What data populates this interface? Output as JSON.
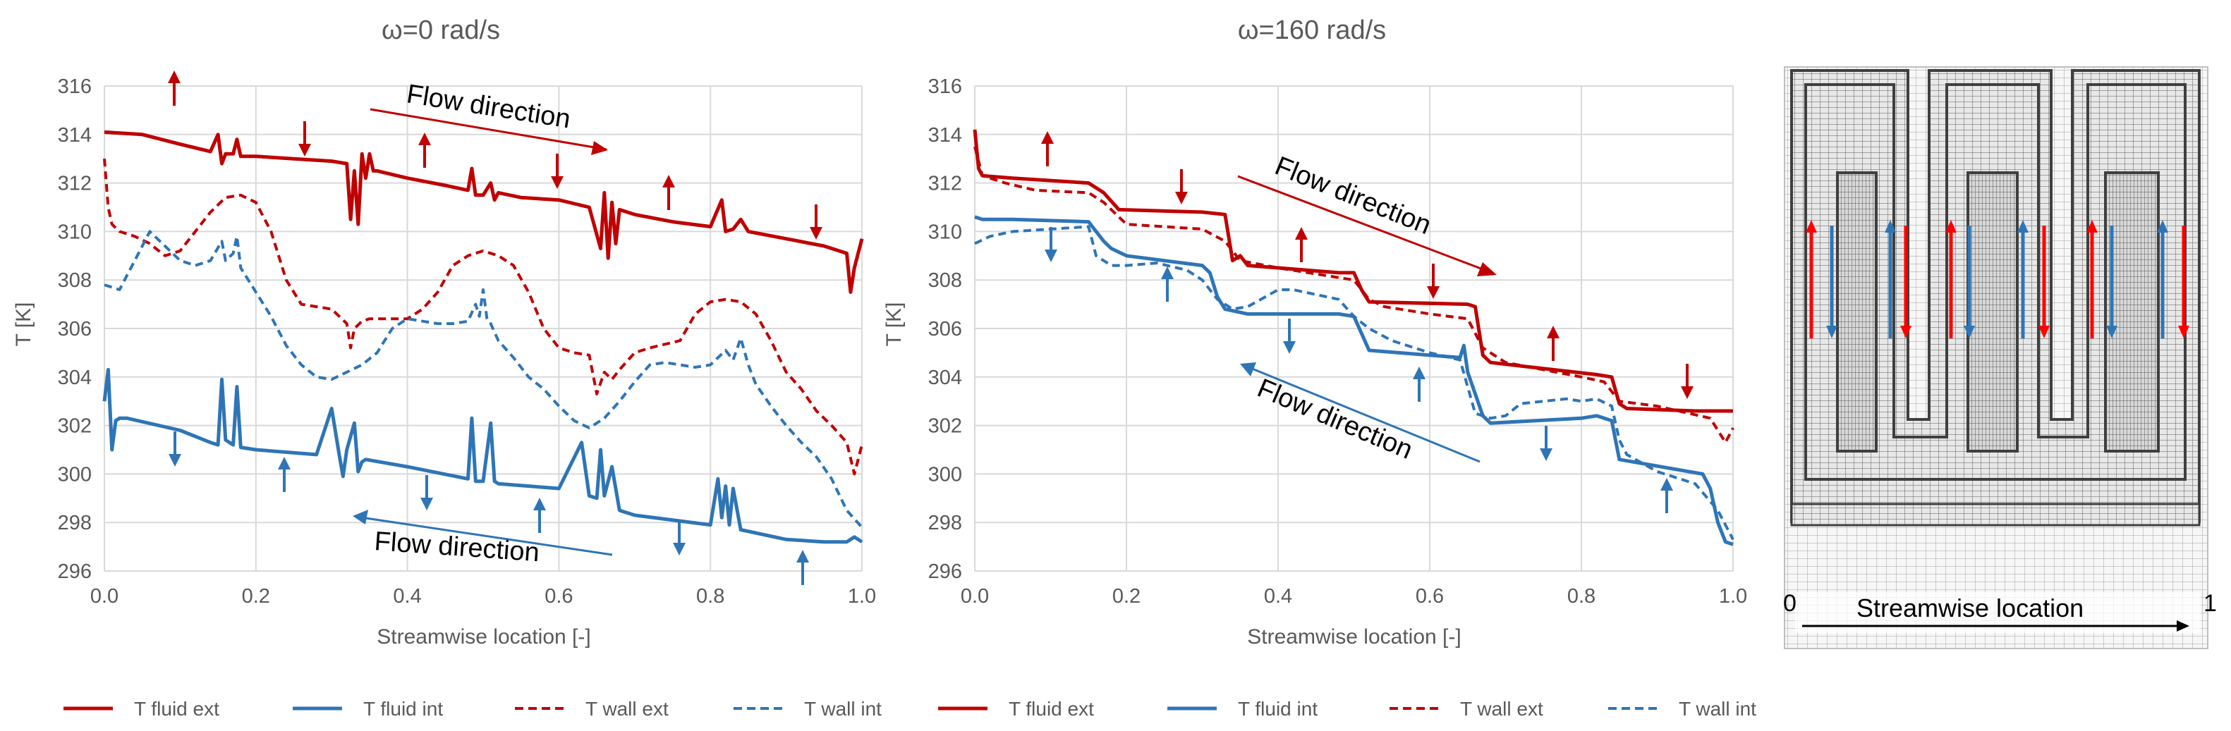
{
  "colors": {
    "ext": "#c00000",
    "int": "#2e75b6",
    "grid": "#d9d9d9",
    "axis_text": "#595959",
    "mesh_dark": "#3f3f3f",
    "mesh_light": "#7f7f7f",
    "red_arrow": "#ff0000",
    "blue_arrow": "#2e75b6"
  },
  "chart_data": [
    {
      "type": "line",
      "title": "ω=0 rad/s",
      "xlabel": "Streamwise location [-]",
      "ylabel": "T [K]",
      "xlim": [
        0,
        1
      ],
      "ylim": [
        296,
        316
      ],
      "xticks": [
        "0.0",
        "0.2",
        "0.4",
        "0.6",
        "0.8",
        "1.0"
      ],
      "yticks": [
        "296",
        "298",
        "300",
        "302",
        "304",
        "306",
        "308",
        "310",
        "312",
        "314",
        "316"
      ],
      "grid": true,
      "legend_position": "bottom",
      "series": [
        {
          "name": "T fluid ext",
          "style": "solid",
          "color": "ext",
          "x": [
            0,
            0.05,
            0.1,
            0.14,
            0.15,
            0.155,
            0.16,
            0.17,
            0.175,
            0.18,
            0.2,
            0.25,
            0.3,
            0.32,
            0.325,
            0.33,
            0.335,
            0.34,
            0.345,
            0.35,
            0.355,
            0.36,
            0.4,
            0.45,
            0.48,
            0.485,
            0.49,
            0.5,
            0.51,
            0.515,
            0.52,
            0.55,
            0.6,
            0.64,
            0.655,
            0.66,
            0.665,
            0.67,
            0.675,
            0.68,
            0.7,
            0.75,
            0.8,
            0.815,
            0.82,
            0.83,
            0.84,
            0.85,
            0.9,
            0.95,
            0.98,
            0.985,
            0.99,
            1.0
          ],
          "y": [
            314.1,
            314.0,
            313.6,
            313.3,
            314.0,
            312.8,
            313.2,
            313.2,
            313.8,
            313.1,
            313.1,
            313.0,
            312.9,
            312.8,
            310.5,
            312.5,
            310.3,
            313.2,
            312.2,
            313.2,
            312.5,
            312.5,
            312.2,
            311.9,
            311.7,
            312.6,
            311.5,
            311.5,
            312.0,
            311.3,
            311.6,
            311.4,
            311.3,
            311.0,
            309.3,
            311.6,
            308.9,
            311.2,
            309.5,
            310.9,
            310.7,
            310.4,
            310.2,
            311.3,
            310.0,
            310.1,
            310.5,
            310.0,
            309.7,
            309.4,
            309.1,
            307.5,
            308.5,
            309.7
          ]
        },
        {
          "name": "T fluid int",
          "style": "solid",
          "color": "int",
          "x": [
            0,
            0.005,
            0.01,
            0.015,
            0.02,
            0.03,
            0.1,
            0.14,
            0.15,
            0.155,
            0.16,
            0.17,
            0.175,
            0.18,
            0.2,
            0.28,
            0.3,
            0.31,
            0.315,
            0.32,
            0.33,
            0.335,
            0.34,
            0.345,
            0.4,
            0.48,
            0.485,
            0.49,
            0.5,
            0.51,
            0.515,
            0.52,
            0.6,
            0.63,
            0.64,
            0.65,
            0.655,
            0.66,
            0.67,
            0.68,
            0.7,
            0.8,
            0.81,
            0.815,
            0.82,
            0.825,
            0.83,
            0.84,
            0.9,
            0.95,
            0.98,
            0.99,
            1.0
          ],
          "y": [
            303.0,
            304.3,
            301.0,
            302.2,
            302.3,
            302.3,
            301.8,
            301.3,
            301.2,
            303.9,
            301.4,
            301.2,
            303.6,
            301.1,
            301.0,
            300.8,
            302.7,
            300.8,
            299.9,
            301.0,
            302.1,
            300.1,
            300.5,
            300.6,
            300.3,
            299.8,
            302.3,
            299.7,
            299.7,
            302.1,
            299.7,
            299.6,
            299.4,
            301.3,
            299.1,
            299.0,
            301.0,
            299.1,
            300.3,
            298.5,
            298.3,
            297.9,
            299.8,
            298.2,
            299.5,
            297.9,
            299.4,
            297.7,
            297.3,
            297.2,
            297.2,
            297.4,
            297.2
          ]
        },
        {
          "name": "T wall ext",
          "style": "dashed",
          "color": "ext",
          "x": [
            0,
            0.005,
            0.01,
            0.02,
            0.04,
            0.06,
            0.08,
            0.1,
            0.12,
            0.14,
            0.16,
            0.18,
            0.2,
            0.22,
            0.24,
            0.26,
            0.3,
            0.32,
            0.325,
            0.33,
            0.34,
            0.35,
            0.4,
            0.42,
            0.44,
            0.46,
            0.48,
            0.5,
            0.52,
            0.54,
            0.56,
            0.58,
            0.6,
            0.62,
            0.64,
            0.65,
            0.66,
            0.67,
            0.68,
            0.7,
            0.72,
            0.76,
            0.78,
            0.8,
            0.82,
            0.84,
            0.86,
            0.88,
            0.9,
            0.92,
            0.94,
            0.96,
            0.98,
            0.99,
            1.0
          ],
          "y": [
            313.0,
            311.0,
            310.3,
            310.0,
            309.8,
            309.5,
            309.0,
            309.2,
            310.0,
            310.8,
            311.4,
            311.5,
            311.2,
            310.0,
            308.0,
            307.0,
            306.8,
            306.2,
            305.2,
            306.0,
            306.3,
            306.4,
            306.4,
            306.8,
            307.5,
            308.6,
            309.0,
            309.2,
            309.0,
            308.6,
            307.5,
            306.0,
            305.2,
            305.0,
            304.9,
            303.3,
            304.2,
            303.9,
            304.3,
            305.0,
            305.2,
            305.5,
            306.6,
            307.1,
            307.2,
            307.1,
            306.6,
            305.5,
            304.2,
            303.5,
            302.6,
            302.0,
            301.3,
            300.0,
            301.2
          ]
        },
        {
          "name": "T wall int",
          "style": "dashed",
          "color": "int",
          "x": [
            0,
            0.02,
            0.04,
            0.06,
            0.08,
            0.1,
            0.12,
            0.14,
            0.155,
            0.16,
            0.17,
            0.175,
            0.18,
            0.2,
            0.22,
            0.24,
            0.26,
            0.28,
            0.3,
            0.32,
            0.34,
            0.36,
            0.38,
            0.4,
            0.42,
            0.44,
            0.46,
            0.48,
            0.49,
            0.495,
            0.5,
            0.505,
            0.51,
            0.52,
            0.54,
            0.56,
            0.58,
            0.6,
            0.62,
            0.64,
            0.66,
            0.68,
            0.7,
            0.72,
            0.74,
            0.76,
            0.78,
            0.8,
            0.82,
            0.83,
            0.84,
            0.85,
            0.86,
            0.88,
            0.9,
            0.92,
            0.94,
            0.96,
            0.98,
            1.0
          ],
          "y": [
            307.8,
            307.6,
            308.8,
            310.0,
            309.4,
            308.8,
            308.6,
            308.8,
            309.6,
            308.8,
            309.1,
            309.8,
            308.5,
            307.5,
            306.5,
            305.3,
            304.5,
            304.0,
            303.9,
            304.2,
            304.5,
            305.0,
            306.0,
            306.4,
            306.3,
            306.2,
            306.2,
            306.3,
            307.0,
            306.5,
            307.6,
            306.4,
            306.2,
            305.5,
            304.8,
            304.0,
            303.5,
            302.8,
            302.2,
            301.9,
            302.3,
            303.0,
            303.8,
            304.5,
            304.6,
            304.5,
            304.4,
            304.5,
            305.1,
            304.7,
            305.6,
            304.5,
            303.7,
            302.8,
            302.0,
            301.3,
            300.7,
            299.8,
            298.5,
            297.8
          ]
        }
      ],
      "annotations": [
        {
          "text": "Flow direction",
          "color": "black"
        },
        {
          "text": "Flow direction",
          "color": "black"
        }
      ]
    },
    {
      "type": "line",
      "title": "ω=160 rad/s",
      "xlabel": "Streamwise location [-]",
      "ylabel": "T [K]",
      "xlim": [
        0,
        1
      ],
      "ylim": [
        296,
        316
      ],
      "xticks": [
        "0.0",
        "0.2",
        "0.4",
        "0.6",
        "0.8",
        "1.0"
      ],
      "yticks": [
        "296",
        "298",
        "300",
        "302",
        "304",
        "306",
        "308",
        "310",
        "312",
        "314",
        "316"
      ],
      "grid": true,
      "legend_position": "bottom",
      "series": [
        {
          "name": "T fluid ext",
          "style": "solid",
          "color": "ext",
          "x": [
            0,
            0.005,
            0.01,
            0.05,
            0.15,
            0.17,
            0.19,
            0.3,
            0.33,
            0.34,
            0.35,
            0.36,
            0.48,
            0.5,
            0.51,
            0.52,
            0.65,
            0.66,
            0.67,
            0.68,
            0.82,
            0.84,
            0.85,
            0.86,
            0.95,
            1.0
          ],
          "y": [
            314.2,
            312.6,
            312.3,
            312.2,
            312.0,
            311.6,
            310.9,
            310.8,
            310.7,
            308.8,
            309.0,
            308.6,
            308.3,
            308.3,
            307.6,
            307.1,
            307.0,
            306.9,
            304.9,
            304.6,
            304.1,
            304.0,
            302.9,
            302.7,
            302.6,
            302.6
          ]
        },
        {
          "name": "T fluid int",
          "style": "solid",
          "color": "int",
          "x": [
            0,
            0.01,
            0.05,
            0.15,
            0.17,
            0.18,
            0.2,
            0.3,
            0.31,
            0.32,
            0.33,
            0.36,
            0.48,
            0.5,
            0.51,
            0.52,
            0.64,
            0.645,
            0.65,
            0.67,
            0.68,
            0.8,
            0.82,
            0.84,
            0.85,
            0.96,
            0.97,
            0.98,
            0.99,
            1.0
          ],
          "y": [
            310.6,
            310.5,
            310.5,
            310.4,
            309.6,
            309.3,
            309.0,
            308.6,
            308.3,
            307.3,
            306.8,
            306.6,
            306.6,
            306.5,
            305.8,
            305.1,
            304.8,
            305.3,
            304.2,
            302.4,
            302.1,
            302.3,
            302.4,
            302.2,
            300.6,
            300.0,
            299.4,
            298.0,
            297.2,
            297.1
          ]
        },
        {
          "name": "T wall ext",
          "style": "dashed",
          "color": "ext",
          "x": [
            0,
            0.01,
            0.04,
            0.08,
            0.15,
            0.17,
            0.2,
            0.3,
            0.33,
            0.35,
            0.4,
            0.48,
            0.5,
            0.52,
            0.54,
            0.6,
            0.65,
            0.67,
            0.7,
            0.8,
            0.83,
            0.85,
            0.9,
            0.97,
            0.99,
            1.0
          ],
          "y": [
            313.5,
            312.3,
            312.0,
            311.7,
            311.6,
            311.2,
            310.3,
            310.1,
            309.6,
            308.8,
            308.5,
            308.1,
            308.0,
            307.2,
            306.9,
            306.6,
            306.4,
            305.2,
            304.6,
            304.0,
            303.8,
            303.0,
            302.8,
            302.3,
            301.3,
            301.9
          ]
        },
        {
          "name": "T wall int",
          "style": "dashed",
          "color": "int",
          "x": [
            0,
            0.02,
            0.05,
            0.1,
            0.15,
            0.16,
            0.18,
            0.2,
            0.24,
            0.28,
            0.3,
            0.32,
            0.34,
            0.36,
            0.4,
            0.42,
            0.48,
            0.5,
            0.52,
            0.55,
            0.6,
            0.64,
            0.66,
            0.68,
            0.7,
            0.72,
            0.78,
            0.8,
            0.82,
            0.84,
            0.85,
            0.86,
            0.9,
            0.95,
            0.98,
            1.0
          ],
          "y": [
            309.5,
            309.8,
            310.0,
            310.1,
            310.2,
            309.0,
            308.6,
            308.6,
            308.7,
            308.4,
            308.0,
            307.2,
            306.8,
            306.9,
            307.6,
            307.6,
            307.2,
            306.5,
            306.0,
            305.5,
            305.0,
            304.7,
            302.5,
            302.3,
            302.4,
            302.9,
            303.1,
            303.0,
            303.1,
            302.8,
            301.4,
            300.8,
            300.1,
            299.6,
            298.5,
            297.3
          ]
        }
      ],
      "annotations": [
        {
          "text": "Flow direction",
          "color": "black"
        },
        {
          "text": "Flow direction",
          "color": "black"
        }
      ]
    }
  ],
  "legend": {
    "items": [
      "T fluid ext",
      "T fluid int",
      "T wall ext",
      "T wall int"
    ]
  },
  "mesh_panel": {
    "start_label": "0",
    "end_label": "1",
    "axis_label": "Streamwise location"
  }
}
